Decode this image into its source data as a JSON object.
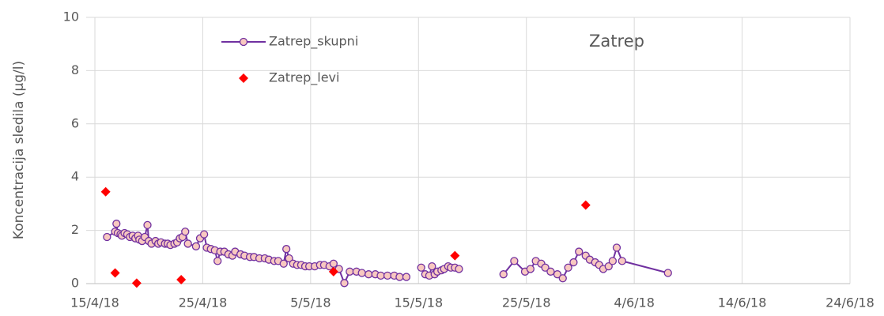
{
  "chart_data": {
    "type": "line",
    "title": "Zatrep",
    "ylabel": "Koncentracija sledila (µg/l)",
    "xlim": [
      "2018-04-15",
      "2018-06-24"
    ],
    "xticks": [
      {
        "value": "2018-04-15",
        "label": "15/4/18"
      },
      {
        "value": "2018-04-25",
        "label": "25/4/18"
      },
      {
        "value": "2018-05-05",
        "label": "5/5/18"
      },
      {
        "value": "2018-05-15",
        "label": "15/5/18"
      },
      {
        "value": "2018-05-25",
        "label": "25/5/18"
      },
      {
        "value": "2018-06-04",
        "label": "4/6/18"
      },
      {
        "value": "2018-06-14",
        "label": "14/6/18"
      },
      {
        "value": "2018-06-24",
        "label": "24/6/18"
      }
    ],
    "ylim": [
      0,
      10
    ],
    "yticks": [
      0,
      2,
      4,
      6,
      8,
      10
    ],
    "grid": true,
    "legend": "upper left",
    "series": [
      {
        "name": "Zatrep_skupni",
        "type": "line",
        "color": "#7030a0",
        "marker_color": "#f8c8c0",
        "x": [
          "2018-04-16T03:00",
          "2018-04-16T21:00",
          "2018-04-17T00:00",
          "2018-04-17T03:00",
          "2018-04-17T09:00",
          "2018-04-17T12:00",
          "2018-04-17T18:00",
          "2018-04-18T00:00",
          "2018-04-18T06:00",
          "2018-04-18T12:00",
          "2018-04-18T18:00",
          "2018-04-19T00:00",
          "2018-04-19T03:00",
          "2018-04-19T09:00",
          "2018-04-19T15:00",
          "2018-04-19T21:00",
          "2018-04-20T00:00",
          "2018-04-20T06:00",
          "2018-04-20T15:00",
          "2018-04-20T21:00",
          "2018-04-21T03:00",
          "2018-04-21T12:00",
          "2018-04-21T18:00",
          "2018-04-22T00:00",
          "2018-04-22T09:00",
          "2018-04-22T15:00",
          "2018-04-22T21:00",
          "2018-04-23T03:00",
          "2018-04-23T09:00",
          "2018-04-23T15:00",
          "2018-04-24T09:00",
          "2018-04-24T18:00",
          "2018-04-25T03:00",
          "2018-04-25T09:00",
          "2018-04-25T18:00",
          "2018-04-26T03:00",
          "2018-04-26T09:00",
          "2018-04-26T15:00",
          "2018-04-27T00:00",
          "2018-04-27T09:00",
          "2018-04-27T18:00",
          "2018-04-28T00:00",
          "2018-04-28T12:00",
          "2018-04-28T21:00",
          "2018-04-29T09:00",
          "2018-04-29T18:00",
          "2018-04-30T06:00",
          "2018-04-30T18:00",
          "2018-05-01T03:00",
          "2018-05-01T15:00",
          "2018-05-02T00:00",
          "2018-05-02T12:00",
          "2018-05-02T18:00",
          "2018-05-03T00:00",
          "2018-05-03T09:00",
          "2018-05-03T18:00",
          "2018-05-04T03:00",
          "2018-05-04T12:00",
          "2018-05-04T21:00",
          "2018-05-05T09:00",
          "2018-05-05T21:00",
          "2018-05-06T06:00",
          "2018-05-06T18:00",
          "2018-05-07T03:00",
          "2018-05-07T15:00",
          "2018-05-08T03:00",
          "2018-05-08T15:00",
          "2018-05-09T06:00",
          "2018-05-09T18:00",
          "2018-05-10T09:00",
          "2018-05-11T00:00",
          "2018-05-11T12:00",
          "2018-05-12T03:00",
          "2018-05-12T18:00",
          "2018-05-13T06:00",
          "2018-05-13T21:00",
          null,
          "2018-05-15T06:00",
          "2018-05-15T15:00",
          "2018-05-16T00:00",
          "2018-05-16T06:00",
          "2018-05-16T12:00",
          "2018-05-16T18:00",
          "2018-05-17T03:00",
          "2018-05-17T09:00",
          "2018-05-17T18:00",
          "2018-05-18T00:00",
          "2018-05-18T09:00",
          "2018-05-18T18:00",
          null,
          "2018-05-22T21:00",
          "2018-05-23T21:00",
          "2018-05-24T21:00",
          "2018-05-25T09:00",
          "2018-05-25T21:00",
          "2018-05-26T09:00",
          "2018-05-26T18:00",
          "2018-05-27T06:00",
          "2018-05-27T21:00",
          "2018-05-28T09:00",
          "2018-05-28T21:00",
          "2018-05-29T09:00",
          "2018-05-29T21:00",
          "2018-05-30T12:00",
          "2018-05-30T21:00",
          "2018-05-31T09:00",
          "2018-05-31T18:00",
          "2018-06-01T03:00",
          "2018-06-01T15:00",
          "2018-06-02T00:00",
          "2018-06-02T09:00",
          "2018-06-02T21:00",
          "2018-06-07T03:00"
        ],
        "values": [
          1.75,
          1.95,
          2.25,
          1.9,
          1.85,
          1.8,
          1.9,
          1.85,
          1.75,
          1.8,
          1.7,
          1.8,
          1.65,
          1.6,
          1.75,
          2.2,
          1.6,
          1.5,
          1.6,
          1.5,
          1.55,
          1.5,
          1.5,
          1.45,
          1.5,
          1.55,
          1.7,
          1.75,
          1.95,
          1.5,
          1.4,
          1.7,
          1.85,
          1.35,
          1.3,
          1.25,
          0.85,
          1.2,
          1.2,
          1.1,
          1.05,
          1.2,
          1.1,
          1.05,
          1.0,
          1.0,
          0.95,
          0.95,
          0.9,
          0.85,
          0.85,
          0.75,
          1.3,
          0.95,
          0.75,
          0.7,
          0.7,
          0.65,
          0.65,
          0.65,
          0.7,
          0.7,
          0.65,
          0.75,
          0.55,
          0.02,
          0.45,
          0.45,
          0.4,
          0.35,
          0.35,
          0.3,
          0.3,
          0.3,
          0.25,
          0.25,
          null,
          0.6,
          0.35,
          0.3,
          0.65,
          0.35,
          0.45,
          0.5,
          0.55,
          0.65,
          0.6,
          0.6,
          0.55,
          null,
          0.35,
          0.85,
          0.45,
          0.55,
          0.85,
          0.75,
          0.6,
          0.45,
          0.35,
          0.2,
          0.6,
          0.8,
          1.2,
          1.05,
          0.9,
          0.8,
          0.7,
          0.55,
          0.65,
          0.85,
          1.35,
          0.85,
          0.4
        ]
      },
      {
        "name": "Zatrep_levi",
        "type": "scatter",
        "color": "#ff0000",
        "x": [
          "2018-04-16T00:00",
          "2018-04-16T21:00",
          "2018-04-18T21:00",
          "2018-04-23T00:00",
          "2018-05-07T03:00",
          "2018-05-18T09:00",
          "2018-05-30T12:00"
        ],
        "values": [
          3.45,
          0.4,
          0.02,
          0.15,
          0.45,
          1.05,
          2.95
        ]
      }
    ]
  }
}
